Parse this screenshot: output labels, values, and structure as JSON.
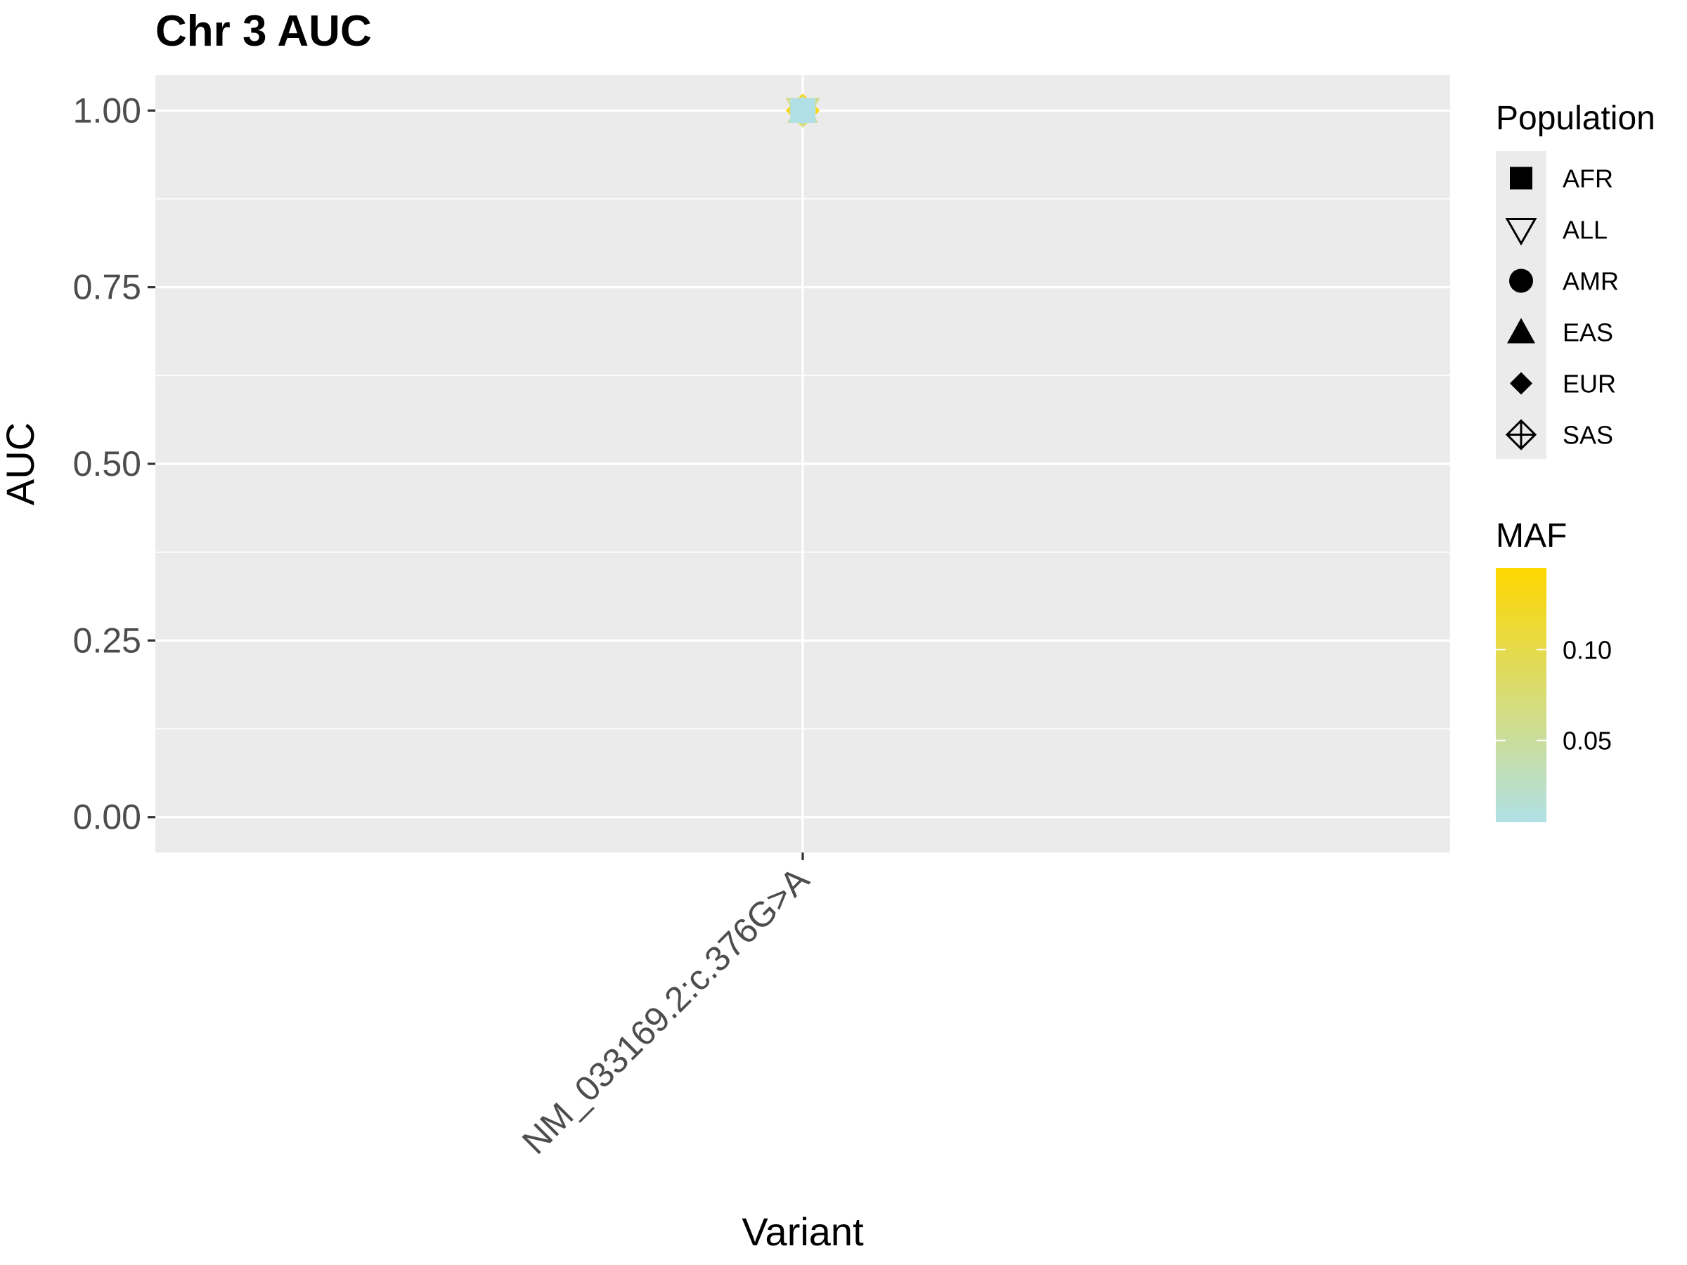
{
  "chart_data": {
    "type": "scatter",
    "title": "Chr 3 AUC",
    "xlabel": "Variant",
    "ylabel": "AUC",
    "categories": [
      "NM_033169.2:c.376G>A"
    ],
    "ylim": [
      -0.05,
      1.05
    ],
    "yticks": [
      0.0,
      0.25,
      0.5,
      0.75,
      1.0
    ],
    "ytick_labels": [
      "0.00",
      "0.25",
      "0.50",
      "0.75",
      "1.00"
    ],
    "grid": true,
    "panel_background": "#ebebeb",
    "points": [
      {
        "population": "SAS",
        "category": "NM_033169.2:c.376G>A",
        "y": 1.0,
        "maf": 0.14
      },
      {
        "population": "EUR",
        "category": "NM_033169.2:c.376G>A",
        "y": 1.0,
        "maf": 0.12
      },
      {
        "population": "ALL",
        "category": "NM_033169.2:c.376G>A",
        "y": 1.0,
        "maf": 0.06
      },
      {
        "population": "EAS",
        "category": "NM_033169.2:c.376G>A",
        "y": 1.0,
        "maf": 0.04
      },
      {
        "population": "AMR",
        "category": "NM_033169.2:c.376G>A",
        "y": 1.0,
        "maf": 0.02
      },
      {
        "population": "AFR",
        "category": "NM_033169.2:c.376G>A",
        "y": 1.0,
        "maf": 0.005
      }
    ],
    "legend_shape": {
      "title": "Population",
      "placement": "right",
      "entries": [
        {
          "label": "AFR",
          "shape": "filled-square"
        },
        {
          "label": "ALL",
          "shape": "open-triangle-down"
        },
        {
          "label": "AMR",
          "shape": "filled-circle"
        },
        {
          "label": "EAS",
          "shape": "filled-triangle-up"
        },
        {
          "label": "EUR",
          "shape": "filled-diamond"
        },
        {
          "label": "SAS",
          "shape": "diamond-plus"
        }
      ]
    },
    "legend_color": {
      "title": "MAF",
      "placement": "right",
      "range": [
        0.005,
        0.145
      ],
      "low_color": "#b0e0e6",
      "high_color": "#ffd700",
      "ticks": [
        0.05,
        0.1
      ],
      "tick_labels": [
        "0.05",
        "0.10"
      ]
    }
  }
}
